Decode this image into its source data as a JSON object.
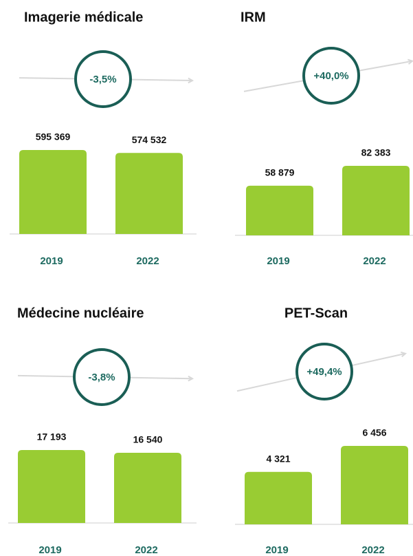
{
  "chart_data": [
    {
      "type": "bar",
      "title": "Imagerie médicale",
      "categories": [
        "2019",
        "2022"
      ],
      "values": [
        595369,
        574532
      ],
      "value_labels": [
        "595 369",
        "574 532"
      ],
      "ylim": [
        0,
        683000
      ],
      "change": {
        "value": -3.5,
        "label": "-3,5%"
      },
      "color": "#99cc33"
    },
    {
      "type": "bar",
      "title": "IRM",
      "categories": [
        "2019",
        "2022"
      ],
      "values": [
        58879,
        82383
      ],
      "value_labels": [
        "58 879",
        "82 383"
      ],
      "ylim": [
        0,
        114200
      ],
      "change": {
        "value": 40.0,
        "label": "+40,0%"
      },
      "color": "#99cc33"
    },
    {
      "type": "bar",
      "title": "Médecine nucléaire",
      "categories": [
        "2019",
        "2022"
      ],
      "values": [
        17193,
        16540
      ],
      "value_labels": [
        "17 193",
        "16 540"
      ],
      "ylim": [
        0,
        22700
      ],
      "change": {
        "value": -3.8,
        "label": "-3,8%"
      },
      "color": "#99cc33"
    },
    {
      "type": "bar",
      "title": "PET-Scan",
      "categories": [
        "2019",
        "2022"
      ],
      "values": [
        4321,
        6456
      ],
      "value_labels": [
        "4 321",
        "6 456"
      ],
      "ylim": [
        0,
        7930
      ],
      "change": {
        "value": 49.4,
        "label": "+49,4%"
      },
      "color": "#99cc33"
    }
  ]
}
